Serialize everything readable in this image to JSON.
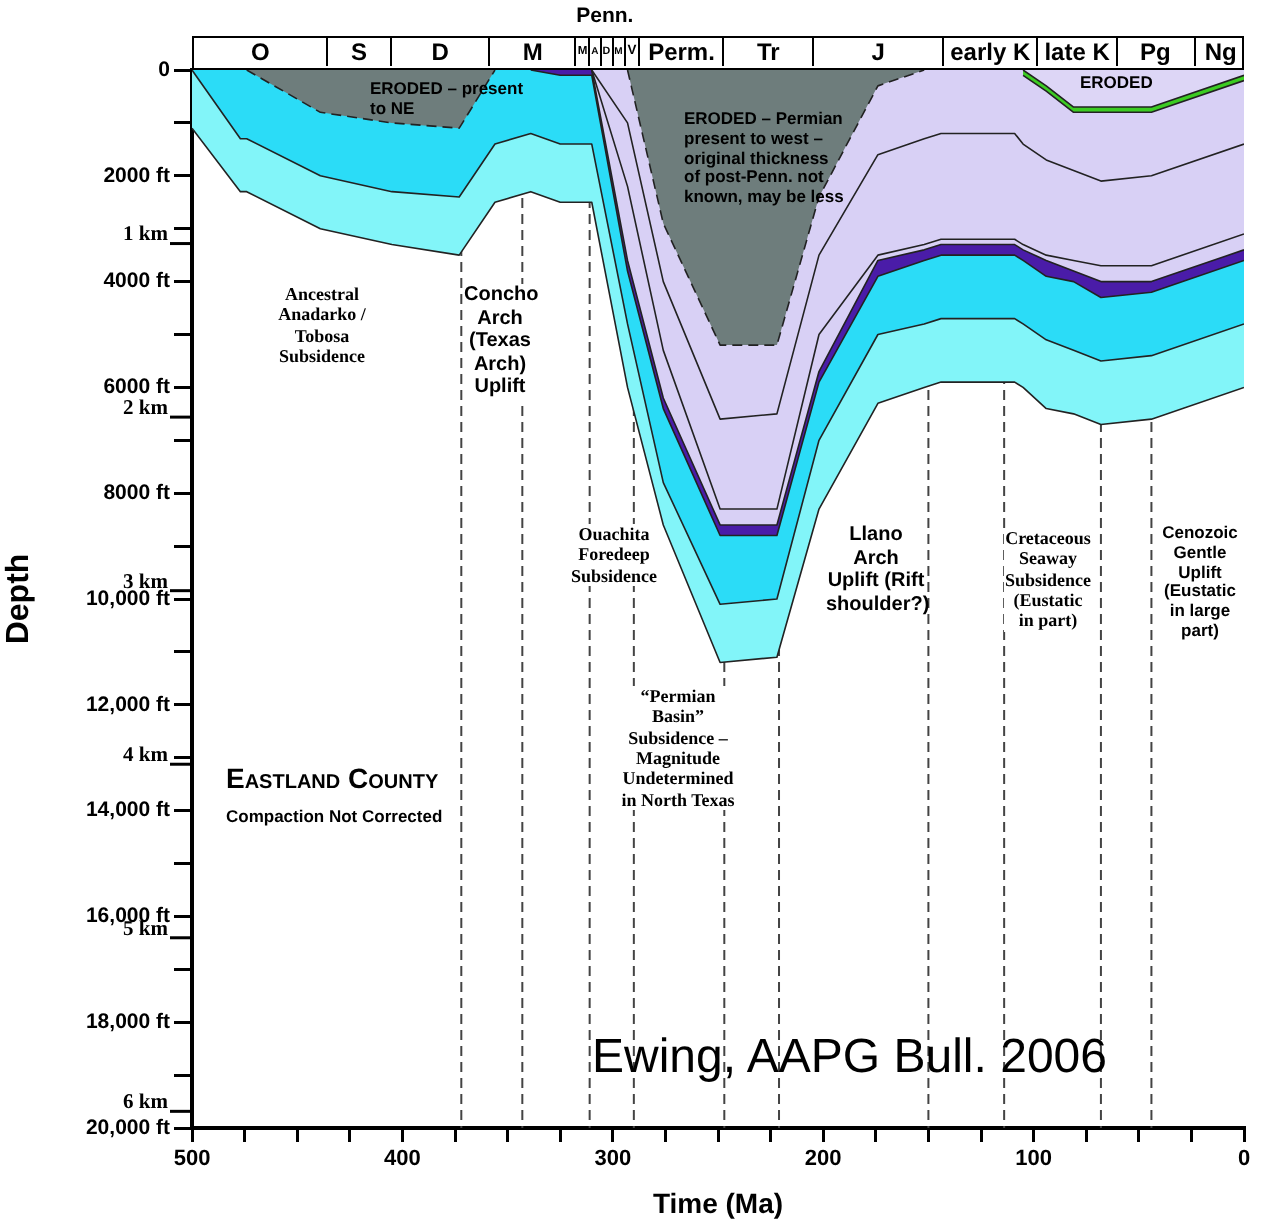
{
  "chart_data": {
    "type": "area",
    "xlabel": "Time (Ma)",
    "ylabel": "Depth",
    "x": [
      500,
      477,
      474,
      439,
      405,
      373,
      356,
      339,
      325,
      310,
      293,
      276,
      249,
      222,
      202,
      174,
      152,
      144,
      109,
      105,
      94,
      81,
      68,
      44,
      0
    ],
    "xlim": [
      500,
      0
    ],
    "xticks": [
      500,
      {
        "value": 475,
        "label": null
      },
      {
        "value": 450,
        "label": null
      },
      {
        "value": 425,
        "label": null
      },
      400,
      {
        "value": 375,
        "label": null
      },
      {
        "value": 350,
        "label": null
      },
      {
        "value": 325,
        "label": null
      },
      300,
      {
        "value": 275,
        "label": null
      },
      {
        "value": 250,
        "label": null
      },
      {
        "value": 225,
        "label": null
      },
      200,
      {
        "value": 175,
        "label": null
      },
      {
        "value": 150,
        "label": null
      },
      {
        "value": 125,
        "label": null
      },
      100,
      {
        "value": 75,
        "label": null
      },
      {
        "value": 50,
        "label": null
      },
      {
        "value": 25,
        "label": null
      },
      0
    ],
    "ylim": [
      20000,
      0
    ],
    "yticks": [
      0,
      {
        "value": 1000,
        "label": null
      },
      {
        "value": 2000,
        "label": "2000 ft"
      },
      {
        "value": 3000,
        "label": null
      },
      {
        "value": 4000,
        "label": "4000 ft"
      },
      {
        "value": 5000,
        "label": null
      },
      {
        "value": 6000,
        "label": "6000 ft"
      },
      {
        "value": 7000,
        "label": null
      },
      {
        "value": 8000,
        "label": "8000 ft"
      },
      {
        "value": 9000,
        "label": null
      },
      {
        "value": 10000,
        "label": "10,000 ft"
      },
      {
        "value": 11000,
        "label": null
      },
      {
        "value": 12000,
        "label": "12,000 ft"
      },
      {
        "value": 13000,
        "label": null
      },
      {
        "value": 14000,
        "label": "14,000 ft"
      },
      {
        "value": 15000,
        "label": null
      },
      {
        "value": 16000,
        "label": "16,000 ft"
      },
      {
        "value": 17000,
        "label": null
      },
      {
        "value": 18000,
        "label": "18,000 ft"
      },
      {
        "value": 19000,
        "label": null
      },
      {
        "value": 20000,
        "label": "20,000 ft"
      }
    ],
    "y2lim": [
      6.096,
      0
    ],
    "y2ticks": [
      {
        "value": 1,
        "label": "1 km"
      },
      {
        "value": 2,
        "label": "2 km"
      },
      {
        "value": 3,
        "label": "3 km"
      },
      {
        "value": 4,
        "label": "4 km"
      },
      {
        "value": 5,
        "label": "5 km"
      },
      {
        "value": 6,
        "label": "6 km"
      }
    ],
    "grid": false,
    "legend": false,
    "marker": "none",
    "series": [
      {
        "color": "#6e7d7c",
        "line_style": "dashed",
        "values": [
          null,
          null,
          0,
          800,
          1000,
          1100,
          0,
          null,
          null,
          null,
          0,
          2900,
          5200,
          5200,
          2400,
          300,
          0,
          null,
          null,
          null,
          null,
          null,
          null,
          null,
          null
        ]
      },
      {
        "color": "#ddd6f6",
        "values": [
          null,
          null,
          null,
          null,
          null,
          null,
          null,
          null,
          null,
          null,
          null,
          null,
          null,
          null,
          null,
          null,
          null,
          null,
          null,
          0,
          300,
          700,
          700,
          700,
          100
        ]
      },
      {
        "color": "#3ccc22",
        "values": [
          null,
          null,
          null,
          null,
          null,
          null,
          null,
          null,
          null,
          null,
          null,
          null,
          null,
          null,
          null,
          null,
          null,
          null,
          null,
          100,
          400,
          800,
          800,
          800,
          200
        ]
      },
      {
        "color": "#d8d0f5",
        "values": [
          null,
          null,
          null,
          null,
          null,
          null,
          null,
          null,
          null,
          0,
          1000,
          4000,
          6600,
          6500,
          3500,
          1600,
          1300,
          1200,
          1200,
          1400,
          1700,
          1900,
          2100,
          2000,
          1400
        ]
      },
      {
        "color": "#d8d0f5",
        "values": [
          null,
          null,
          null,
          null,
          null,
          null,
          null,
          null,
          null,
          0,
          2200,
          5300,
          8300,
          8300,
          5000,
          3500,
          3300,
          3200,
          3200,
          3300,
          3500,
          3600,
          3700,
          3700,
          3100
        ]
      },
      {
        "color": "#d8d0f5",
        "values": [
          null,
          null,
          null,
          null,
          null,
          null,
          null,
          null,
          null,
          0,
          3600,
          6200,
          8600,
          8600,
          5700,
          3600,
          3400,
          3300,
          3300,
          3400,
          3600,
          3800,
          4000,
          4000,
          3400
        ]
      },
      {
        "color": "#4a1ca8",
        "values": [
          null,
          null,
          null,
          null,
          null,
          null,
          null,
          0,
          100,
          100,
          3800,
          6400,
          8800,
          8800,
          5900,
          3900,
          3600,
          3500,
          3500,
          3600,
          3900,
          4000,
          4300,
          4200,
          3600
        ]
      },
      {
        "color": "#2bdcf7",
        "values": [
          0,
          1300,
          1300,
          2000,
          2300,
          2400,
          1400,
          1200,
          1400,
          1400,
          4800,
          7800,
          10100,
          10000,
          7000,
          5000,
          4800,
          4700,
          4700,
          4800,
          5100,
          5300,
          5500,
          5400,
          4800
        ]
      },
      {
        "color": "#82f5f9",
        "values": [
          1100,
          2300,
          2300,
          3000,
          3300,
          3500,
          2500,
          2300,
          2500,
          2500,
          6000,
          8600,
          11200,
          11100,
          8300,
          6300,
          6000,
          5900,
          5900,
          6000,
          6400,
          6500,
          6700,
          6600,
          6000
        ]
      }
    ],
    "ref_lines": [
      {
        "axis": "x",
        "value": 372,
        "line_style": "dashed"
      },
      {
        "axis": "x",
        "value": 343,
        "line_style": "dashed"
      },
      {
        "axis": "x",
        "value": 311,
        "line_style": "dashed"
      },
      {
        "axis": "x",
        "value": 290,
        "line_style": "dashed"
      },
      {
        "axis": "x",
        "value": 247,
        "line_style": "dashed"
      },
      {
        "axis": "x",
        "value": 221,
        "line_style": "dashed"
      },
      {
        "axis": "x",
        "value": 150,
        "line_style": "dashed"
      },
      {
        "axis": "x",
        "value": 114,
        "line_style": "dashed"
      },
      {
        "axis": "x",
        "value": 68,
        "line_style": "dashed"
      },
      {
        "axis": "x",
        "value": 44,
        "line_style": "dashed"
      }
    ],
    "annotations": [
      "ERODED – present to NE",
      "ERODED – Permian present to west – original thickness of post-Penn. not known, may be less",
      "ERODED",
      "Ancestral Anadarko / Tobosa Subsidence",
      "Concho Arch (Texas Arch) Uplift",
      "Ouachita Foredeep Subsidence",
      "“Permian Basin” Subsidence – Magnitude Undetermined in North Texas",
      "Llano Arch Uplift (Rift shoulder?)",
      "Cretaceous Seaway Subsidence (Eustatic in part)",
      "Cenozoic Gentle Uplift (Eustatic in large part)",
      "Eastland County",
      "Compaction Not Corrected",
      "Ewing,  AAPG Bull. 2006",
      "O",
      "S",
      "D",
      "M",
      "M",
      "A",
      "D",
      "M",
      "V",
      "Perm.",
      "Tr",
      "J",
      "early K",
      "late K",
      "Pg",
      "Ng",
      "Penn."
    ]
  }
}
